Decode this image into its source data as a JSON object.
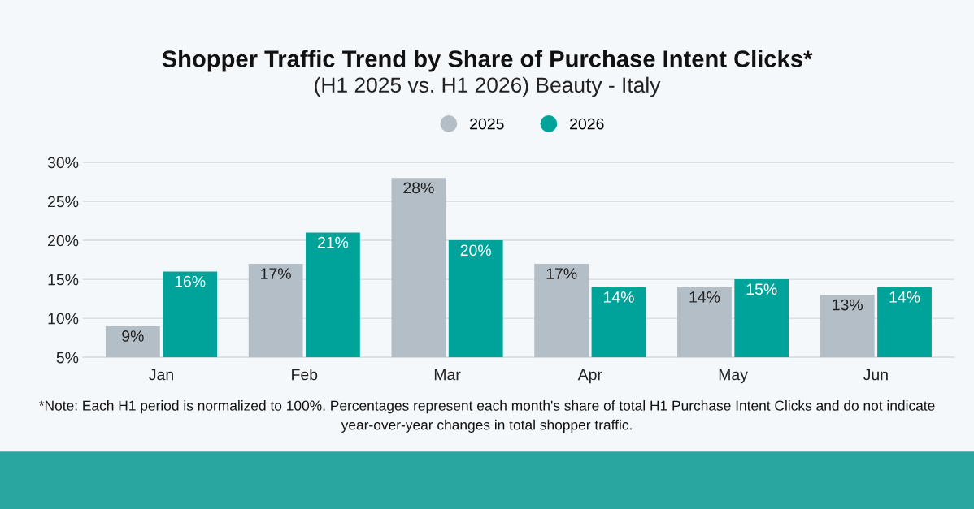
{
  "chart_data": {
    "type": "bar",
    "title": "Shopper Traffic Trend by Share of Purchase Intent Clicks*",
    "subtitle": "(H1 2025 vs. H1 2026) Beauty - Italy",
    "categories": [
      "Jan",
      "Feb",
      "Mar",
      "Apr",
      "May",
      "Jun"
    ],
    "series": [
      {
        "name": "2025",
        "color": "#b4bec6",
        "values": [
          9,
          17,
          28,
          17,
          14,
          13
        ],
        "value_labels": [
          "9%",
          "17%",
          "28%",
          "17%",
          "14%",
          "13%"
        ]
      },
      {
        "name": "2026",
        "color": "#00a39a",
        "values": [
          16,
          21,
          20,
          14,
          15,
          14
        ],
        "value_labels": [
          "16%",
          "21%",
          "20%",
          "14%",
          "15%",
          "14%"
        ]
      }
    ],
    "ylim": [
      5,
      30
    ],
    "yticks": [
      {
        "value": 5,
        "label": "5%"
      },
      {
        "value": 10,
        "label": "10%"
      },
      {
        "value": 15,
        "label": "15%"
      },
      {
        "value": 20,
        "label": "20%"
      },
      {
        "value": 25,
        "label": "25%"
      },
      {
        "value": 30,
        "label": "30%"
      }
    ],
    "grid": "y",
    "legend": "top",
    "annotations": [
      "*Note: Each H1 period is normalized to 100%. Percentages represent each month's share of total H1 Purchase Intent Clicks and do not indicate year-over-year changes in total shopper traffic."
    ]
  }
}
